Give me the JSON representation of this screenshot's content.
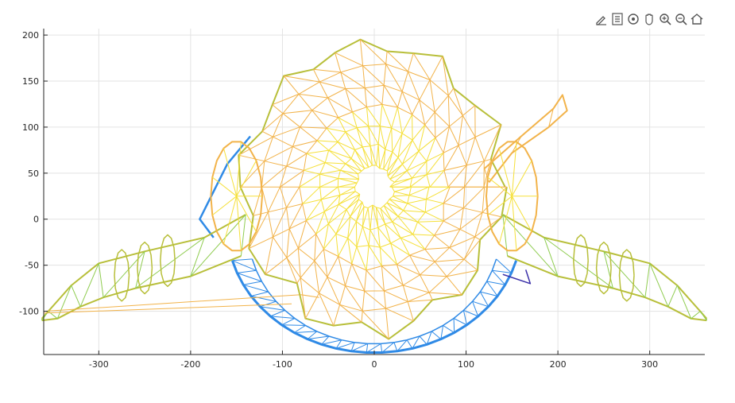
{
  "toolbar": {
    "items": [
      "edit-icon",
      "legend-icon",
      "rotate-icon",
      "pan-icon",
      "zoom-in-icon",
      "zoom-out-icon",
      "home-icon"
    ]
  },
  "chart_data": {
    "type": "mesh",
    "title": "",
    "xlabel": "",
    "ylabel": "",
    "xlim": [
      -360,
      360
    ],
    "ylim": [
      -147,
      207
    ],
    "xticks": [
      -300,
      -200,
      -100,
      0,
      100,
      200,
      300
    ],
    "yticks": [
      200,
      150,
      100,
      50,
      0,
      -50,
      -100
    ],
    "grid": true,
    "colors": {
      "blue": "#2f8ae6",
      "dark_blue": "#3a2fa8",
      "green": "#8fcc50",
      "olive": "#b8bf3a",
      "orange": "#f2b34a",
      "yellow": "#f5e03a"
    },
    "regions": [
      {
        "part": "body",
        "center": [
          0,
          35
        ],
        "rx": 140,
        "ry": 155,
        "color": "#f2b34a"
      },
      {
        "part": "left-arm",
        "points": [
          [
            -360,
            -108
          ],
          [
            -300,
            -80
          ],
          [
            -220,
            -55
          ],
          [
            -150,
            -25
          ],
          [
            -140,
            5
          ]
        ],
        "color": "#b8bf3a"
      },
      {
        "part": "right-arm",
        "points": [
          [
            360,
            -108
          ],
          [
            300,
            -80
          ],
          [
            220,
            -55
          ],
          [
            150,
            -25
          ],
          [
            140,
            5
          ]
        ],
        "color": "#b8bf3a"
      },
      {
        "part": "base",
        "points": [
          [
            -180,
            0
          ],
          [
            -150,
            -100
          ],
          [
            -60,
            -140
          ],
          [
            0,
            -145
          ],
          [
            80,
            -130
          ],
          [
            150,
            -95
          ]
        ],
        "color": "#2f8ae6"
      },
      {
        "part": "appendage",
        "points": [
          [
            120,
            60
          ],
          [
            180,
            100
          ],
          [
            205,
            130
          ]
        ],
        "color": "#f2b34a"
      }
    ]
  }
}
